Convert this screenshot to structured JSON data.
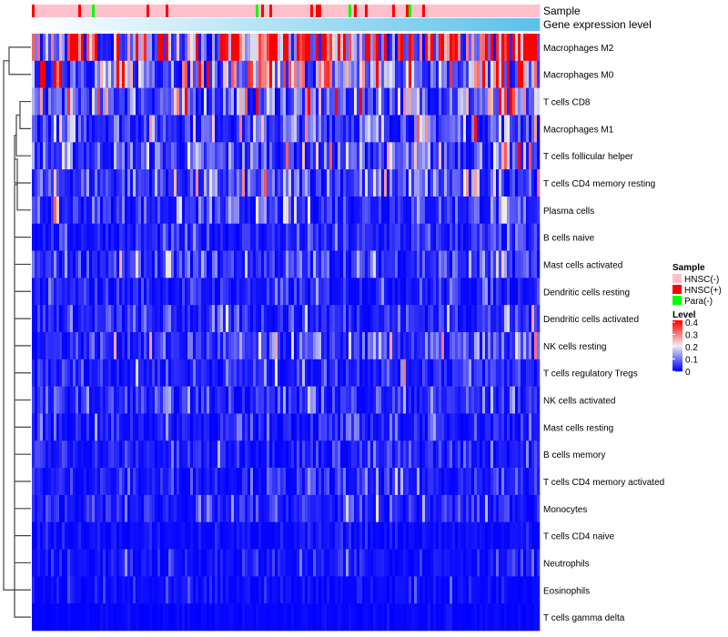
{
  "chart_data": {
    "type": "heatmap",
    "annotation_tracks": [
      "Sample",
      "Gene expression level"
    ],
    "rows": [
      "Macrophages M2",
      "Macrophages M0",
      "T cells CD8",
      "Macrophages M1",
      "T cells follicular helper",
      "T cells CD4 memory resting",
      "Plasma cells",
      "B cells naive",
      "Mast cells activated",
      "Dendritic cells resting",
      "Dendritic cells activated",
      "NK cells resting",
      "T cells regulatory  Tregs",
      "NK cells activated",
      "Mast cells resting",
      "B cells memory",
      "T cells CD4 memory activated",
      "Monocytes",
      "T cells CD4 naive",
      "Neutrophils",
      "Eosinophils",
      "T cells gamma delta"
    ],
    "row_mean_level": [
      0.25,
      0.16,
      0.1,
      0.08,
      0.07,
      0.07,
      0.05,
      0.03,
      0.05,
      0.03,
      0.04,
      0.05,
      0.04,
      0.04,
      0.03,
      0.03,
      0.03,
      0.03,
      0.012,
      0.02,
      0.012,
      0.005
    ],
    "n_columns": 186,
    "legend_sample": {
      "title": "Sample",
      "entries": [
        {
          "label": "HNSC(-)",
          "color": "#ffc0cb"
        },
        {
          "label": "HNSC(+)",
          "color": "#ff0000"
        },
        {
          "label": "Para(-)",
          "color": "#00ff00"
        }
      ]
    },
    "legend_level": {
      "title": "Level",
      "ticks": [
        "0.4",
        "0.3",
        "0.2",
        "0.1",
        "0"
      ],
      "range": [
        0,
        0.4
      ],
      "colors": [
        "#0000ff",
        "#eeeeee",
        "#ff0000"
      ]
    },
    "gene_expression_colors": [
      "#ffffff",
      "#5bc0eb"
    ]
  }
}
